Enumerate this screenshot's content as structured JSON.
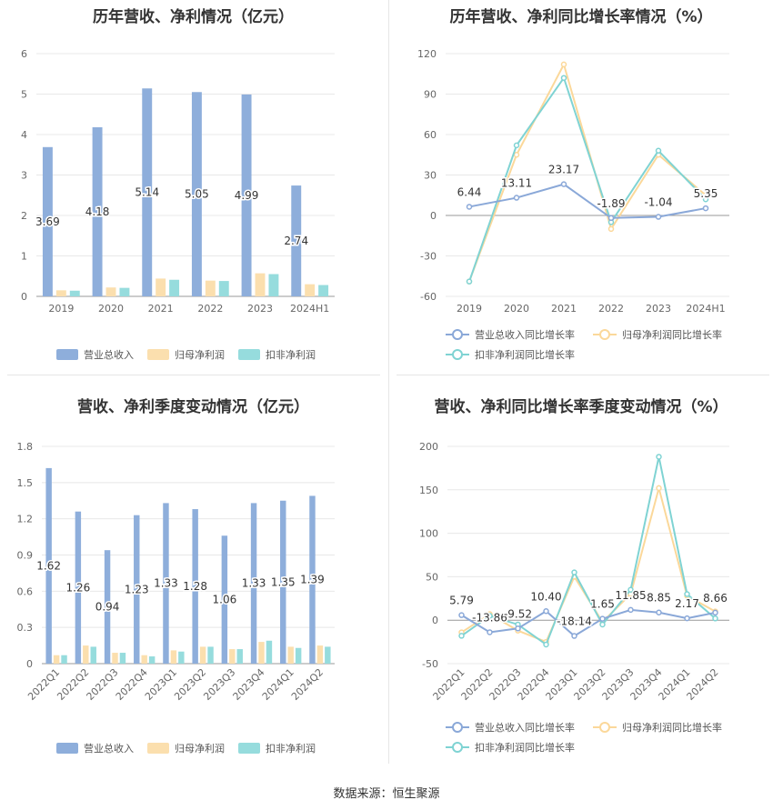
{
  "source_text": "数据来源：恒生聚源",
  "colors": {
    "revenue": "#8eaedb",
    "net_profit": "#fbdfae",
    "deducted_profit": "#96dcdd",
    "rev_line": "#8aa8d8",
    "np_line": "#fbd89a",
    "dp_line": "#7fd3d3",
    "grid": "#e8e8e8",
    "axis_text": "#666666"
  },
  "chart_data": [
    {
      "id": "annual-bars",
      "type": "bar",
      "title": "历年营收、净利情况（亿元）",
      "categories": [
        "2019",
        "2020",
        "2021",
        "2022",
        "2023",
        "2024H1"
      ],
      "ylim": [
        0,
        6
      ],
      "yticks": [
        0,
        1,
        2,
        3,
        4,
        5,
        6
      ],
      "series": [
        {
          "name": "营业总收入",
          "values": [
            3.69,
            4.18,
            5.14,
            5.05,
            4.99,
            2.74
          ],
          "labels": [
            "3.69",
            "4.18",
            "5.14",
            "5.05",
            "4.99",
            "2.74"
          ]
        },
        {
          "name": "归母净利润",
          "values": [
            0.15,
            0.22,
            0.44,
            0.39,
            0.57,
            0.3
          ]
        },
        {
          "name": "扣非净利润",
          "values": [
            0.14,
            0.21,
            0.41,
            0.38,
            0.55,
            0.28
          ]
        }
      ],
      "legend": "bottom"
    },
    {
      "id": "annual-growth",
      "type": "line",
      "title": "历年营收、净利同比增长率情况（%）",
      "categories": [
        "2019",
        "2020",
        "2021",
        "2022",
        "2023",
        "2024H1"
      ],
      "ylim": [
        -60,
        120
      ],
      "yticks": [
        -60,
        -30,
        0,
        30,
        60,
        90,
        120
      ],
      "series": [
        {
          "name": "营业总收入同比增长率",
          "values": [
            6.44,
            13.11,
            23.17,
            -1.89,
            -1.04,
            5.35
          ],
          "labels": [
            "6.44",
            "13.11",
            "23.17",
            "-1.89",
            "-1.04",
            "5.35"
          ]
        },
        {
          "name": "归母净利润同比增长率",
          "values": [
            -49,
            45,
            112,
            -10,
            45,
            15
          ]
        },
        {
          "name": "扣非净利润同比增长率",
          "values": [
            -49,
            52,
            102,
            -5,
            48,
            12
          ]
        }
      ],
      "legend": "bottom"
    },
    {
      "id": "quarterly-bars",
      "type": "bar",
      "title": "营收、净利季度变动情况（亿元）",
      "categories": [
        "2022Q1",
        "2022Q2",
        "2022Q3",
        "2022Q4",
        "2023Q1",
        "2023Q2",
        "2023Q3",
        "2023Q4",
        "2024Q1",
        "2024Q2"
      ],
      "ylim": [
        0,
        1.8
      ],
      "yticks": [
        0,
        0.3,
        0.6,
        0.9,
        1.2,
        1.5,
        1.8
      ],
      "series": [
        {
          "name": "营业总收入",
          "values": [
            1.62,
            1.26,
            0.94,
            1.23,
            1.33,
            1.28,
            1.06,
            1.33,
            1.35,
            1.39
          ],
          "labels": [
            "1.62",
            "1.26",
            "0.94",
            "1.23",
            "1.33",
            "1.28",
            "1.06",
            "1.33",
            "1.35",
            "1.39"
          ]
        },
        {
          "name": "归母净利润",
          "values": [
            0.07,
            0.15,
            0.09,
            0.07,
            0.11,
            0.14,
            0.12,
            0.18,
            0.14,
            0.15
          ]
        },
        {
          "name": "扣非净利润",
          "values": [
            0.07,
            0.14,
            0.09,
            0.06,
            0.1,
            0.14,
            0.12,
            0.19,
            0.13,
            0.14
          ]
        }
      ],
      "legend": "bottom"
    },
    {
      "id": "quarterly-growth",
      "type": "line",
      "title": "营收、净利同比增长率季度变动情况（%）",
      "categories": [
        "2022Q1",
        "2022Q2",
        "2022Q3",
        "2022Q4",
        "2023Q1",
        "2023Q2",
        "2023Q3",
        "2023Q4",
        "2024Q1",
        "2024Q2"
      ],
      "ylim": [
        -50,
        200
      ],
      "yticks": [
        -50,
        0,
        50,
        100,
        150,
        200
      ],
      "series": [
        {
          "name": "营业总收入同比增长率",
          "values": [
            5.79,
            -13.86,
            -9.52,
            10.4,
            -18.14,
            1.65,
            11.85,
            8.85,
            2.17,
            8.66
          ],
          "labels": [
            "5.79",
            "-13.86",
            "-9.52",
            "10.40",
            "-18.14",
            "1.65",
            "11.85",
            "8.85",
            "2.17",
            "8.66"
          ]
        },
        {
          "name": "归母净利润同比增长率",
          "values": [
            -14,
            7,
            -12,
            -25,
            50,
            -2,
            30,
            152,
            28,
            10
          ]
        },
        {
          "name": "扣非净利润同比增长率",
          "values": [
            -18,
            5,
            -5,
            -28,
            55,
            -5,
            35,
            188,
            30,
            2
          ]
        }
      ],
      "legend": "bottom"
    }
  ]
}
